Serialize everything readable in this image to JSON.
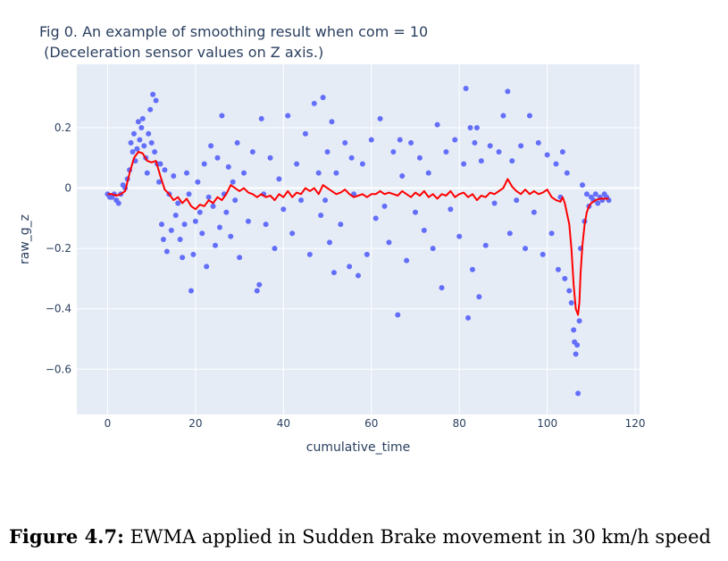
{
  "chart_data": {
    "type": "scatter",
    "title": "Fig 0. An example of smoothing result when com = 10",
    "subtitle": " (Deceleration sensor values on Z axis.)",
    "xlabel": "cumulative_time",
    "ylabel": "raw_g_z",
    "xlim": [
      -7,
      121
    ],
    "ylim": [
      -0.75,
      0.41
    ],
    "xticks": [
      0,
      20,
      40,
      60,
      80,
      100,
      120
    ],
    "xtick_labels": [
      "0",
      "20",
      "40",
      "60",
      "80",
      "100",
      "120"
    ],
    "yticks": [
      0.2,
      0,
      -0.2,
      -0.4,
      -0.6
    ],
    "ytick_labels": [
      "0.2",
      "0",
      "−0.2",
      "−0.4",
      "−0.6"
    ],
    "grid": true,
    "background": "#e5ecf6",
    "series": [
      {
        "mode": "markers",
        "color": "#636efa",
        "points": [
          [
            0.0,
            -0.02
          ],
          [
            0.5,
            -0.03
          ],
          [
            1.0,
            -0.03
          ],
          [
            1.5,
            -0.02
          ],
          [
            2.0,
            -0.04
          ],
          [
            2.5,
            -0.05
          ],
          [
            3.0,
            -0.02
          ],
          [
            3.5,
            0.01
          ],
          [
            4.0,
            0.0
          ],
          [
            4.5,
            0.03
          ],
          [
            5.0,
            0.06
          ],
          [
            5.3,
            0.15
          ],
          [
            5.7,
            0.12
          ],
          [
            6.0,
            0.18
          ],
          [
            6.3,
            0.09
          ],
          [
            6.7,
            0.13
          ],
          [
            7.0,
            0.22
          ],
          [
            7.3,
            0.16
          ],
          [
            7.7,
            0.2
          ],
          [
            8.0,
            0.23
          ],
          [
            8.3,
            0.14
          ],
          [
            8.7,
            0.1
          ],
          [
            9.0,
            0.05
          ],
          [
            9.3,
            0.18
          ],
          [
            9.7,
            0.26
          ],
          [
            10.0,
            0.15
          ],
          [
            10.3,
            0.31
          ],
          [
            10.7,
            0.12
          ],
          [
            11.0,
            0.29
          ],
          [
            11.3,
            0.08
          ],
          [
            11.7,
            0.02
          ],
          [
            12.0,
            0.08
          ],
          [
            12.3,
            -0.12
          ],
          [
            12.7,
            -0.17
          ],
          [
            13.0,
            0.06
          ],
          [
            13.5,
            -0.21
          ],
          [
            14.0,
            -0.02
          ],
          [
            14.5,
            -0.14
          ],
          [
            15.0,
            0.04
          ],
          [
            15.5,
            -0.09
          ],
          [
            16.0,
            -0.05
          ],
          [
            16.5,
            -0.17
          ],
          [
            17.0,
            -0.23
          ],
          [
            17.5,
            -0.12
          ],
          [
            18.0,
            0.05
          ],
          [
            18.5,
            -0.02
          ],
          [
            19.0,
            -0.34
          ],
          [
            19.5,
            -0.22
          ],
          [
            20.0,
            -0.11
          ],
          [
            20.5,
            0.02
          ],
          [
            21.0,
            -0.08
          ],
          [
            21.5,
            -0.15
          ],
          [
            22.0,
            0.08
          ],
          [
            22.5,
            -0.26
          ],
          [
            23.0,
            -0.03
          ],
          [
            23.5,
            0.14
          ],
          [
            24.0,
            -0.06
          ],
          [
            24.5,
            -0.19
          ],
          [
            25.0,
            0.1
          ],
          [
            25.5,
            -0.13
          ],
          [
            26.0,
            0.24
          ],
          [
            26.5,
            -0.02
          ],
          [
            27.0,
            -0.08
          ],
          [
            27.5,
            0.07
          ],
          [
            28.0,
            -0.16
          ],
          [
            28.5,
            0.02
          ],
          [
            29.0,
            -0.04
          ],
          [
            29.5,
            0.15
          ],
          [
            30.0,
            -0.23
          ],
          [
            31.0,
            0.05
          ],
          [
            32.0,
            -0.11
          ],
          [
            33.0,
            0.12
          ],
          [
            34.0,
            -0.34
          ],
          [
            34.5,
            -0.32
          ],
          [
            35.0,
            0.23
          ],
          [
            35.5,
            -0.02
          ],
          [
            36.0,
            -0.12
          ],
          [
            37.0,
            0.1
          ],
          [
            38.0,
            -0.2
          ],
          [
            39.0,
            0.03
          ],
          [
            40.0,
            -0.07
          ],
          [
            41.0,
            0.24
          ],
          [
            42.0,
            -0.15
          ],
          [
            43.0,
            0.08
          ],
          [
            44.0,
            -0.04
          ],
          [
            45.0,
            0.18
          ],
          [
            46.0,
            -0.22
          ],
          [
            47.0,
            0.28
          ],
          [
            48.0,
            0.05
          ],
          [
            48.5,
            -0.09
          ],
          [
            49.0,
            0.3
          ],
          [
            49.5,
            -0.04
          ],
          [
            50.0,
            0.12
          ],
          [
            50.5,
            -0.18
          ],
          [
            51.0,
            0.22
          ],
          [
            51.5,
            -0.28
          ],
          [
            52.0,
            0.05
          ],
          [
            53.0,
            -0.12
          ],
          [
            54.0,
            0.15
          ],
          [
            55.0,
            -0.26
          ],
          [
            55.5,
            0.1
          ],
          [
            56.0,
            -0.02
          ],
          [
            57.0,
            -0.29
          ],
          [
            58.0,
            0.08
          ],
          [
            59.0,
            -0.22
          ],
          [
            60.0,
            0.16
          ],
          [
            61.0,
            -0.1
          ],
          [
            62.0,
            0.23
          ],
          [
            63.0,
            -0.06
          ],
          [
            64.0,
            -0.18
          ],
          [
            65.0,
            0.12
          ],
          [
            66.0,
            -0.42
          ],
          [
            66.5,
            0.16
          ],
          [
            67.0,
            0.04
          ],
          [
            68.0,
            -0.24
          ],
          [
            69.0,
            0.15
          ],
          [
            70.0,
            -0.08
          ],
          [
            71.0,
            0.1
          ],
          [
            72.0,
            -0.14
          ],
          [
            73.0,
            0.05
          ],
          [
            74.0,
            -0.2
          ],
          [
            75.0,
            0.21
          ],
          [
            76.0,
            -0.33
          ],
          [
            77.0,
            0.12
          ],
          [
            78.0,
            -0.07
          ],
          [
            79.0,
            0.16
          ],
          [
            80.0,
            -0.16
          ],
          [
            81.0,
            0.08
          ],
          [
            81.5,
            0.33
          ],
          [
            82.0,
            -0.43
          ],
          [
            82.5,
            0.2
          ],
          [
            83.0,
            -0.27
          ],
          [
            83.5,
            0.15
          ],
          [
            84.0,
            0.2
          ],
          [
            84.5,
            -0.36
          ],
          [
            85.0,
            0.09
          ],
          [
            86.0,
            -0.19
          ],
          [
            87.0,
            0.14
          ],
          [
            88.0,
            -0.05
          ],
          [
            89.0,
            0.12
          ],
          [
            90.0,
            0.24
          ],
          [
            91.0,
            0.32
          ],
          [
            91.5,
            -0.15
          ],
          [
            92.0,
            0.09
          ],
          [
            93.0,
            -0.04
          ],
          [
            94.0,
            0.14
          ],
          [
            95.0,
            -0.2
          ],
          [
            96.0,
            0.24
          ],
          [
            97.0,
            -0.08
          ],
          [
            98.0,
            0.15
          ],
          [
            99.0,
            -0.22
          ],
          [
            100.0,
            0.11
          ],
          [
            101.0,
            -0.15
          ],
          [
            102.0,
            0.08
          ],
          [
            102.5,
            -0.27
          ],
          [
            103.0,
            -0.03
          ],
          [
            103.5,
            0.12
          ],
          [
            104.0,
            -0.3
          ],
          [
            104.5,
            0.05
          ],
          [
            105.0,
            -0.34
          ],
          [
            105.5,
            -0.38
          ],
          [
            106.0,
            -0.47
          ],
          [
            106.2,
            -0.51
          ],
          [
            106.5,
            -0.55
          ],
          [
            106.8,
            -0.52
          ],
          [
            107.0,
            -0.68
          ],
          [
            107.3,
            -0.44
          ],
          [
            107.6,
            -0.2
          ],
          [
            108.0,
            0.01
          ],
          [
            108.5,
            -0.11
          ],
          [
            109.0,
            -0.02
          ],
          [
            109.5,
            -0.06
          ],
          [
            110.0,
            -0.03
          ],
          [
            110.5,
            -0.04
          ],
          [
            111.0,
            -0.02
          ],
          [
            111.5,
            -0.05
          ],
          [
            112.0,
            -0.03
          ],
          [
            112.5,
            -0.04
          ],
          [
            113.0,
            -0.02
          ],
          [
            113.5,
            -0.03
          ],
          [
            114.0,
            -0.04
          ]
        ]
      },
      {
        "mode": "lines",
        "color": "#ff0000",
        "points": [
          [
            0,
            -0.02
          ],
          [
            1,
            -0.02
          ],
          [
            2,
            -0.025
          ],
          [
            3,
            -0.02
          ],
          [
            4,
            -0.01
          ],
          [
            5,
            0.05
          ],
          [
            6,
            0.1
          ],
          [
            7,
            0.12
          ],
          [
            8,
            0.115
          ],
          [
            9,
            0.09
          ],
          [
            10,
            0.085
          ],
          [
            11,
            0.09
          ],
          [
            12,
            0.04
          ],
          [
            13,
            -0.005
          ],
          [
            14,
            -0.02
          ],
          [
            15,
            -0.04
          ],
          [
            16,
            -0.03
          ],
          [
            17,
            -0.05
          ],
          [
            18,
            -0.035
          ],
          [
            19,
            -0.06
          ],
          [
            20,
            -0.07
          ],
          [
            21,
            -0.055
          ],
          [
            22,
            -0.06
          ],
          [
            23,
            -0.04
          ],
          [
            24,
            -0.05
          ],
          [
            25,
            -0.03
          ],
          [
            26,
            -0.04
          ],
          [
            27,
            -0.02
          ],
          [
            28,
            0.01
          ],
          [
            29,
            0.0
          ],
          [
            30,
            -0.01
          ],
          [
            31,
            0.0
          ],
          [
            32,
            -0.015
          ],
          [
            33,
            -0.02
          ],
          [
            34,
            -0.03
          ],
          [
            35,
            -0.02
          ],
          [
            36,
            -0.03
          ],
          [
            37,
            -0.025
          ],
          [
            38,
            -0.04
          ],
          [
            39,
            -0.02
          ],
          [
            40,
            -0.03
          ],
          [
            41,
            -0.01
          ],
          [
            42,
            -0.03
          ],
          [
            43,
            -0.015
          ],
          [
            44,
            -0.02
          ],
          [
            45,
            0.0
          ],
          [
            46,
            -0.01
          ],
          [
            47,
            0.0
          ],
          [
            48,
            -0.02
          ],
          [
            49,
            0.01
          ],
          [
            50,
            0.0
          ],
          [
            51,
            -0.01
          ],
          [
            52,
            -0.02
          ],
          [
            53,
            -0.015
          ],
          [
            54,
            -0.005
          ],
          [
            55,
            -0.02
          ],
          [
            56,
            -0.03
          ],
          [
            57,
            -0.025
          ],
          [
            58,
            -0.02
          ],
          [
            59,
            -0.03
          ],
          [
            60,
            -0.02
          ],
          [
            61,
            -0.02
          ],
          [
            62,
            -0.01
          ],
          [
            63,
            -0.02
          ],
          [
            64,
            -0.015
          ],
          [
            65,
            -0.02
          ],
          [
            66,
            -0.025
          ],
          [
            67,
            -0.01
          ],
          [
            68,
            -0.02
          ],
          [
            69,
            -0.03
          ],
          [
            70,
            -0.015
          ],
          [
            71,
            -0.025
          ],
          [
            72,
            -0.01
          ],
          [
            73,
            -0.03
          ],
          [
            74,
            -0.02
          ],
          [
            75,
            -0.035
          ],
          [
            76,
            -0.02
          ],
          [
            77,
            -0.025
          ],
          [
            78,
            -0.01
          ],
          [
            79,
            -0.03
          ],
          [
            80,
            -0.02
          ],
          [
            81,
            -0.015
          ],
          [
            82,
            -0.03
          ],
          [
            83,
            -0.02
          ],
          [
            84,
            -0.04
          ],
          [
            85,
            -0.025
          ],
          [
            86,
            -0.03
          ],
          [
            87,
            -0.015
          ],
          [
            88,
            -0.02
          ],
          [
            89,
            -0.01
          ],
          [
            90,
            0.0
          ],
          [
            91,
            0.03
          ],
          [
            92,
            0.005
          ],
          [
            93,
            -0.01
          ],
          [
            94,
            -0.02
          ],
          [
            95,
            -0.005
          ],
          [
            96,
            -0.02
          ],
          [
            97,
            -0.01
          ],
          [
            98,
            -0.02
          ],
          [
            99,
            -0.015
          ],
          [
            100,
            -0.005
          ],
          [
            101,
            -0.03
          ],
          [
            102,
            -0.04
          ],
          [
            103,
            -0.045
          ],
          [
            103.5,
            -0.03
          ],
          [
            104,
            -0.05
          ],
          [
            105,
            -0.12
          ],
          [
            105.5,
            -0.2
          ],
          [
            106,
            -0.32
          ],
          [
            106.5,
            -0.4
          ],
          [
            107,
            -0.42
          ],
          [
            107.3,
            -0.38
          ],
          [
            107.6,
            -0.28
          ],
          [
            108,
            -0.19
          ],
          [
            108.5,
            -0.12
          ],
          [
            109,
            -0.08
          ],
          [
            109.5,
            -0.06
          ],
          [
            110,
            -0.05
          ],
          [
            111,
            -0.04
          ],
          [
            112,
            -0.035
          ],
          [
            113,
            -0.035
          ],
          [
            114,
            -0.035
          ]
        ]
      }
    ]
  },
  "caption": {
    "label": "Figure 4.7:",
    "text": "EWMA applied in Sudden Brake movement in 30 km/h speed"
  }
}
